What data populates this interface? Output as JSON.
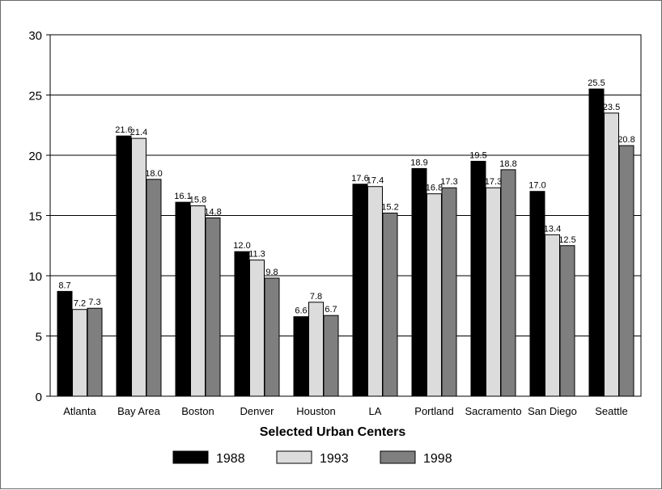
{
  "chart_data": {
    "type": "bar",
    "title": "",
    "xlabel": "Selected Urban Centers",
    "ylabel": "",
    "ylim": [
      0,
      30
    ],
    "yticks": [
      0,
      5,
      10,
      15,
      20,
      25,
      30
    ],
    "grid": "horizontal",
    "legend_position": "bottom",
    "categories": [
      "Atlanta",
      "Bay Area",
      "Boston",
      "Denver",
      "Houston",
      "LA",
      "Portland",
      "Sacramento",
      "San Diego",
      "Seattle"
    ],
    "series": [
      {
        "name": "1988",
        "color": "#000000",
        "values": [
          8.7,
          21.6,
          16.1,
          12.0,
          6.6,
          17.6,
          18.9,
          19.5,
          17.0,
          25.5
        ],
        "labels": [
          "8.7",
          "21.6",
          "16.1",
          "12.0",
          "6.6",
          "17.6",
          "18.9",
          "19.5",
          "17.0",
          "25.5"
        ]
      },
      {
        "name": "1993",
        "color": "#dcdcdc",
        "values": [
          7.2,
          21.4,
          15.8,
          11.3,
          7.8,
          17.4,
          16.8,
          17.3,
          13.4,
          23.5
        ],
        "labels": [
          "7.2",
          "21.4",
          "15.8",
          "11.3",
          "7.8",
          "17.4",
          "16.8",
          "17.3",
          "13.4",
          "23.5"
        ]
      },
      {
        "name": "1998",
        "color": "#7f7f7f",
        "values": [
          7.3,
          18.0,
          14.8,
          9.8,
          6.7,
          15.2,
          17.3,
          18.8,
          12.5,
          20.8
        ],
        "labels": [
          "7.3",
          "18.0",
          "14.8",
          "9.8",
          "6.7",
          "15.2",
          "17.3",
          "18.8",
          "12.5",
          "20.8"
        ]
      }
    ]
  }
}
